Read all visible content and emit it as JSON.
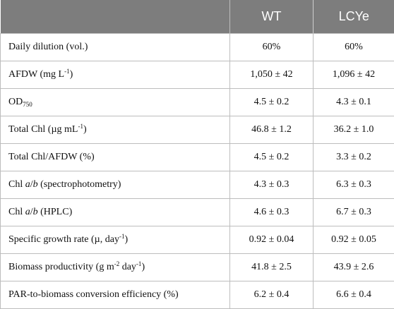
{
  "table": {
    "headers": [
      "",
      "WT",
      "LCYe"
    ],
    "rows": [
      {
        "label": [
          "Daily dilution (vol.)"
        ],
        "wt": "60%",
        "lcye": "60%"
      },
      {
        "label": [
          "AFDW (mg L",
          "-1",
          ")"
        ],
        "wt": "1,050 ± 42",
        "lcye": "1,096 ± 42"
      },
      {
        "label": [
          "OD",
          "750"
        ],
        "wt": "4.5 ± 0.2",
        "lcye": "4.3 ± 0.1"
      },
      {
        "label": [
          "Total Chl (µg mL",
          "-1",
          ")"
        ],
        "wt": "46.8 ± 1.2",
        "lcye": "36.2 ± 1.0"
      },
      {
        "label": [
          "Total Chl/AFDW (%)"
        ],
        "wt": "4.5 ± 0.2",
        "lcye": "3.3 ± 0.2"
      },
      {
        "label": [
          "Chl ",
          "a",
          "/",
          "b",
          " (spectrophotometry)"
        ],
        "wt": "4.3 ± 0.3",
        "lcye": "6.3 ± 0.3"
      },
      {
        "label": [
          "Chl ",
          "a",
          "/",
          "b",
          " (HPLC)"
        ],
        "wt": "4.6 ± 0.3",
        "lcye": "6.7 ± 0.3"
      },
      {
        "label": [
          "Specific growth rate (µ, day",
          "-1",
          ")"
        ],
        "wt": "0.92 ± 0.04",
        "lcye": "0.92 ± 0.05"
      },
      {
        "label": [
          "Biomass productivity (g m",
          "-2",
          " day",
          "-1",
          ")"
        ],
        "wt": "41.8 ± 2.5",
        "lcye": "43.9 ± 2.6"
      },
      {
        "label": [
          "PAR-to-biomass conversion efficiency (%)"
        ],
        "wt": "6.2 ± 0.4",
        "lcye": "6.6 ± 0.4"
      }
    ]
  }
}
